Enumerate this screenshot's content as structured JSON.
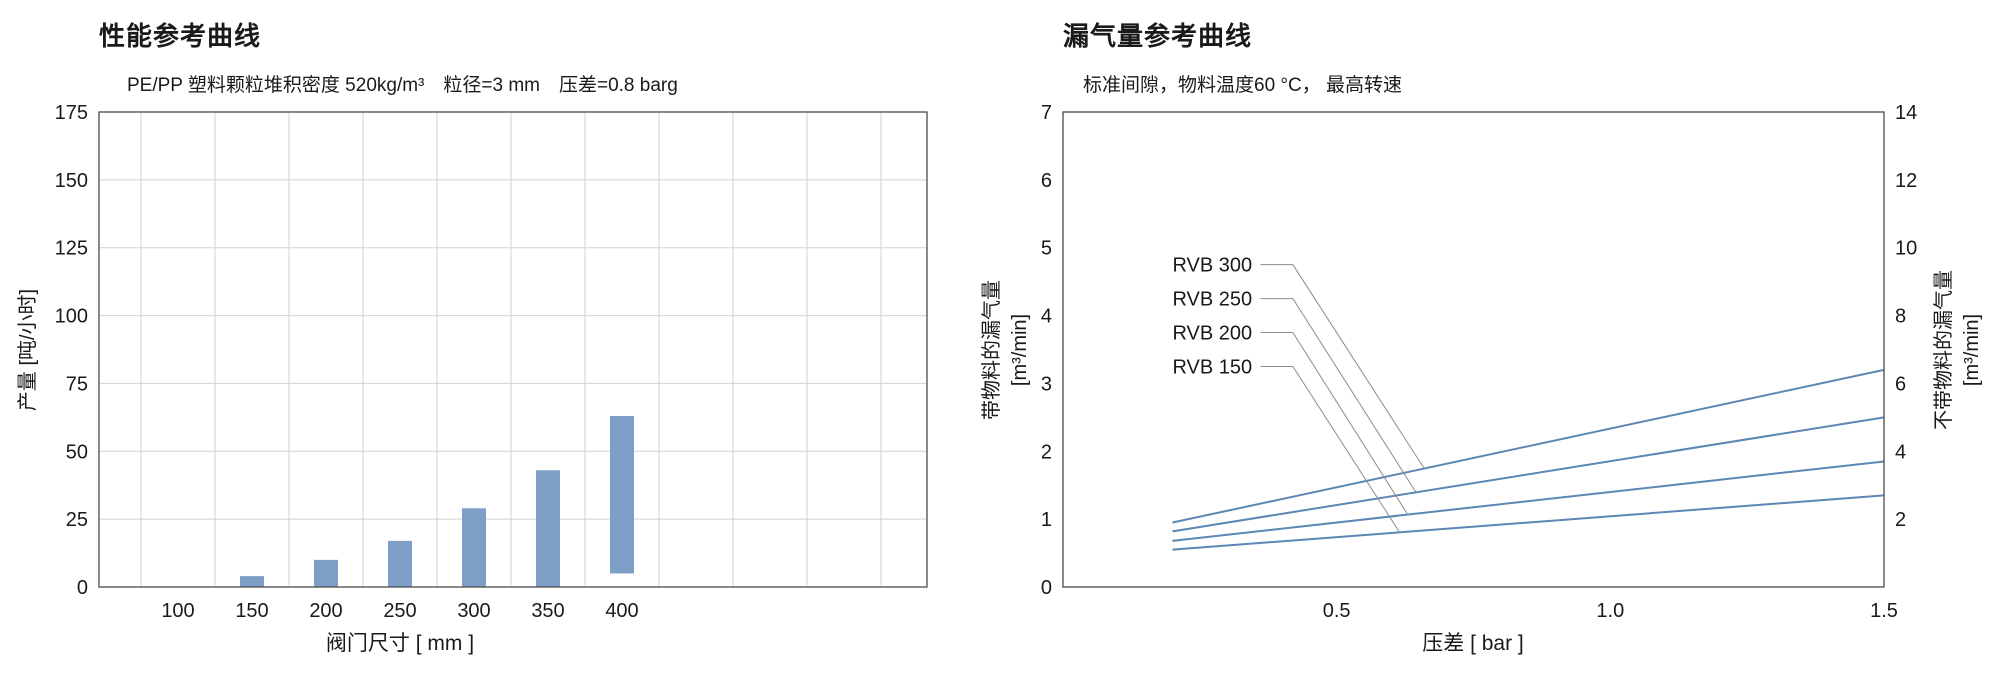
{
  "colors": {
    "bar_fill": "#7D9EC6",
    "line_stroke": "#5B87B5",
    "grid": "#D2D2D2",
    "frame": "#4A4A4A",
    "leader": "#8C8C8C",
    "text": "#1A1A1A"
  },
  "chart_data": [
    {
      "type": "bar",
      "title": "性能参考曲线",
      "subtitle": "PE/PP 塑料颗粒堆积密度 520kg/m³　粒径=3 mm　压差=0.8 barg",
      "xlabel": "阀门尺寸 [ mm ]",
      "ylabel": "产量 [吨/小时]",
      "categories": [
        "100",
        "150",
        "200",
        "250",
        "300",
        "350",
        "400"
      ],
      "bar_ranges": [
        [
          0,
          0
        ],
        [
          0,
          4
        ],
        [
          0,
          10
        ],
        [
          0,
          17
        ],
        [
          0,
          29
        ],
        [
          0,
          43
        ],
        [
          5,
          63
        ]
      ],
      "ylim": [
        0,
        175
      ],
      "yticks": [
        "0",
        "25",
        "50",
        "75",
        "100",
        "125",
        "150",
        "175"
      ],
      "grid": true,
      "legend": "none"
    },
    {
      "type": "line",
      "title": "漏气量参考曲线",
      "subtitle": "标准间隙，物料温度60 °C， 最高转速",
      "xlabel": "压差 [ bar ]",
      "ylabel_left": [
        "带物料的漏气量",
        "[m³/min]"
      ],
      "ylabel_right": [
        "不带物料的漏气量",
        "[m³/min]"
      ],
      "xlim": [
        0,
        1.5
      ],
      "xticks": [
        "0.5",
        "1.0",
        "1.5"
      ],
      "ylim_left": [
        0,
        7
      ],
      "yticks_left": [
        "0",
        "1",
        "2",
        "3",
        "4",
        "5",
        "6",
        "7"
      ],
      "ylim_right": [
        0,
        14
      ],
      "yticks_right": [
        "2",
        "4",
        "6",
        "8",
        "10",
        "12",
        "14"
      ],
      "grid": false,
      "series": [
        {
          "name": "RVB 300",
          "x": [
            0.2,
            1.5
          ],
          "y": [
            0.95,
            3.2
          ]
        },
        {
          "name": "RVB 250",
          "x": [
            0.2,
            1.5
          ],
          "y": [
            0.82,
            2.5
          ]
        },
        {
          "name": "RVB 200",
          "x": [
            0.2,
            1.5
          ],
          "y": [
            0.68,
            1.85
          ]
        },
        {
          "name": "RVB 150",
          "x": [
            0.2,
            1.5
          ],
          "y": [
            0.55,
            1.35
          ]
        }
      ],
      "callouts": [
        {
          "label": "RVB 300",
          "series": 0,
          "label_y": 4.75,
          "target_x": 0.66
        },
        {
          "label": "RVB 250",
          "series": 1,
          "label_y": 4.25,
          "target_x": 0.645
        },
        {
          "label": "RVB 200",
          "series": 2,
          "label_y": 3.75,
          "target_x": 0.63
        },
        {
          "label": "RVB 150",
          "series": 3,
          "label_y": 3.25,
          "target_x": 0.615
        }
      ]
    }
  ]
}
